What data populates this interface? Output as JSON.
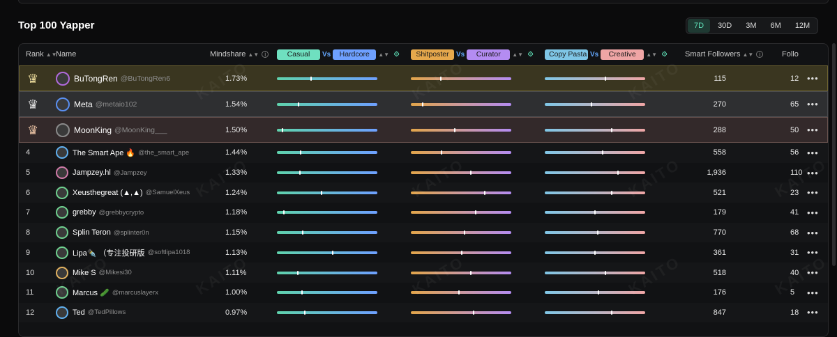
{
  "title": "Top 100 Yapper",
  "periods": [
    "7D",
    "30D",
    "3M",
    "6M",
    "12M"
  ],
  "active_period": "7D",
  "header": {
    "rank": "Rank",
    "name": "Name",
    "mindshare": "Mindshare",
    "casual": "Casual",
    "hardcore": "Hardcore",
    "shitposter": "Shitposter",
    "curator": "Curator",
    "copy_pasta": "Copy Pasta",
    "creative": "Creative",
    "vs": "Vs",
    "smart_followers": "Smart Followers",
    "followers_truncated": "Follo"
  },
  "colors": {
    "accent": "#5fe0b8",
    "casual": "#6fe0c0",
    "hardcore": "#6ea0ff",
    "shitposter": "#e6a84c",
    "curator": "#b48cf2",
    "copy_pasta": "#7fc6e6",
    "creative": "#efa5a5",
    "gold_row": "#3a3620",
    "silver_row": "#2e2f31",
    "bronze_row": "#33292a"
  },
  "watermark": "KAITO",
  "rows": [
    {
      "rank": "1",
      "name": "BuTongRen",
      "handle": "@BuTongRen6",
      "mindshare": "1.73%",
      "smart_followers": "115",
      "followers": "12",
      "m1": 0.33,
      "m2": 0.29,
      "m3": 0.6,
      "top": true
    },
    {
      "rank": "2",
      "name": "Meta",
      "handle": "@metaio102",
      "mindshare": "1.54%",
      "smart_followers": "270",
      "followers": "65",
      "m1": 0.21,
      "m2": 0.11,
      "m3": 0.46,
      "top": true
    },
    {
      "rank": "3",
      "name": "MoonKing",
      "handle": "@MoonKing___",
      "mindshare": "1.50%",
      "smart_followers": "288",
      "followers": "50",
      "m1": 0.05,
      "m2": 0.43,
      "m3": 0.66,
      "top": true
    },
    {
      "rank": "4",
      "name": "The Smart Ape 🔥",
      "handle": "@the_smart_ape",
      "mindshare": "1.44%",
      "smart_followers": "558",
      "followers": "56",
      "m1": 0.23,
      "m2": 0.3,
      "m3": 0.57
    },
    {
      "rank": "5",
      "name": "Jampzey.hl",
      "handle": "@Jampzey",
      "mindshare": "1.33%",
      "smart_followers": "1,936",
      "followers": "110",
      "m1": 0.22,
      "m2": 0.59,
      "m3": 0.72
    },
    {
      "rank": "6",
      "name": "Xeusthegreat (▲,▲)",
      "handle": "@SamuelXeus",
      "mindshare": "1.24%",
      "smart_followers": "521",
      "followers": "23",
      "m1": 0.44,
      "m2": 0.73,
      "m3": 0.66
    },
    {
      "rank": "7",
      "name": "grebby",
      "handle": "@grebbycrypto",
      "mindshare": "1.18%",
      "smart_followers": "179",
      "followers": "41",
      "m1": 0.06,
      "m2": 0.64,
      "m3": 0.49
    },
    {
      "rank": "8",
      "name": "Splin Teron",
      "handle": "@splinter0n",
      "mindshare": "1.15%",
      "smart_followers": "770",
      "followers": "68",
      "m1": 0.25,
      "m2": 0.53,
      "m3": 0.52
    },
    {
      "rank": "9",
      "name": "Lipa✒️ （专注投研版",
      "handle": "@softlipa1018",
      "mindshare": "1.13%",
      "smart_followers": "361",
      "followers": "31",
      "m1": 0.55,
      "m2": 0.5,
      "m3": 0.49
    },
    {
      "rank": "10",
      "name": "Mike S",
      "handle": "@Mikesi30",
      "mindshare": "1.11%",
      "smart_followers": "518",
      "followers": "40",
      "m1": 0.2,
      "m2": 0.59,
      "m3": 0.6
    },
    {
      "rank": "11",
      "name": "Marcus 🥒",
      "handle": "@marcuslayerx",
      "mindshare": "1.00%",
      "smart_followers": "176",
      "followers": "5",
      "m1": 0.24,
      "m2": 0.47,
      "m3": 0.53
    },
    {
      "rank": "12",
      "name": "Ted",
      "handle": "@TedPillows",
      "mindshare": "0.97%",
      "smart_followers": "847",
      "followers": "18",
      "m1": 0.27,
      "m2": 0.62,
      "m3": 0.66
    }
  ]
}
